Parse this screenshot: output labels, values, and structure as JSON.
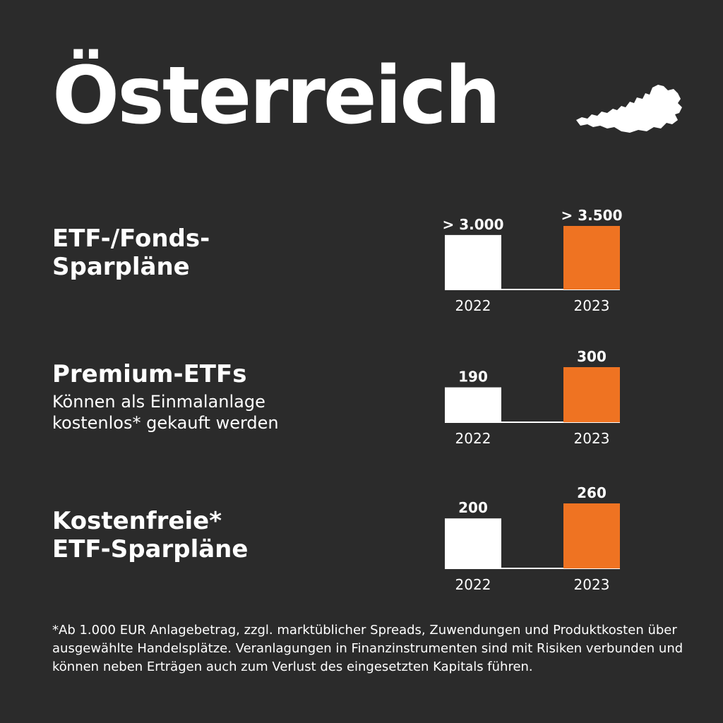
{
  "header": {
    "title": "Österreich"
  },
  "colors": {
    "background": "#2b2b2b",
    "bar_2022": "#ffffff",
    "bar_2023": "#ef7322",
    "text": "#ffffff"
  },
  "rows": [
    {
      "heading": "ETF-/Fonds-\nSparpläne",
      "subtitle": ""
    },
    {
      "heading": "Premium-ETFs",
      "subtitle": "Können als Einmalanlage\nkostenlos* gekauft werden"
    },
    {
      "heading": "Kostenfreie*\nETF-Sparpläne",
      "subtitle": ""
    }
  ],
  "chart_data": [
    {
      "type": "bar",
      "categories": [
        "2022",
        "2023"
      ],
      "values": [
        3000,
        3500
      ],
      "value_labels": [
        "> 3.000",
        "> 3.500"
      ],
      "colors": [
        "#ffffff",
        "#ef7322"
      ]
    },
    {
      "type": "bar",
      "categories": [
        "2022",
        "2023"
      ],
      "values": [
        190,
        300
      ],
      "value_labels": [
        "190",
        "300"
      ],
      "colors": [
        "#ffffff",
        "#ef7322"
      ]
    },
    {
      "type": "bar",
      "categories": [
        "2022",
        "2023"
      ],
      "values": [
        200,
        260
      ],
      "value_labels": [
        "200",
        "260"
      ],
      "colors": [
        "#ffffff",
        "#ef7322"
      ]
    }
  ],
  "footnote": "*Ab 1.000 EUR Anlagebetrag, zzgl. marktüblicher Spreads, Zuwendungen und Produktkosten über ausgewählte Handelsplätze. Veranlagungen in Finanzinstrumenten sind mit Risiken verbunden und können neben Erträgen auch zum Verlust des eingesetzten Kapitals führen."
}
